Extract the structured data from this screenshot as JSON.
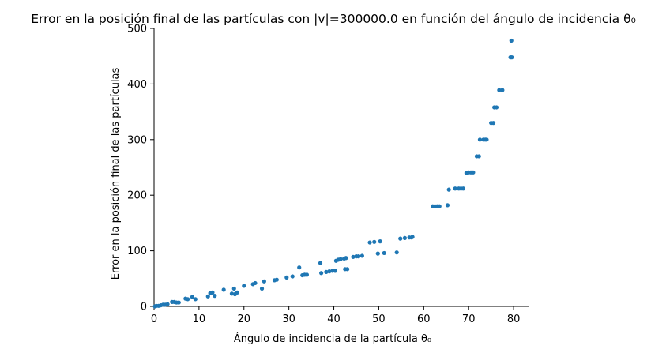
{
  "chart_data": {
    "type": "scatter",
    "title": "Error en la posición final de las partículas con |v|=300000.0 en función del ángulo de incidencia θ₀",
    "xlabel": "Ángulo de incidencia de la partícula θ₀",
    "ylabel": "Error en la posición final de las partículas",
    "xlim": [
      0,
      83.5
    ],
    "ylim": [
      0,
      500
    ],
    "x_ticks": [
      0,
      10,
      20,
      30,
      40,
      50,
      60,
      70,
      80
    ],
    "y_ticks": [
      0,
      100,
      200,
      300,
      400,
      500
    ],
    "x_tick_labels": [
      "0",
      "10",
      "20",
      "30",
      "40",
      "50",
      "60",
      "70",
      "80"
    ],
    "y_tick_labels": [
      "0",
      "100",
      "200",
      "300",
      "400",
      "500"
    ],
    "grid": false,
    "marker_color": "#1f77b4",
    "points": [
      [
        0.2,
        0
      ],
      [
        0.5,
        1
      ],
      [
        1,
        1
      ],
      [
        1.5,
        2
      ],
      [
        2,
        3
      ],
      [
        2.5,
        3
      ],
      [
        3,
        4
      ],
      [
        4,
        8
      ],
      [
        4.5,
        8
      ],
      [
        5,
        7
      ],
      [
        5.5,
        7
      ],
      [
        7,
        14
      ],
      [
        7.5,
        13
      ],
      [
        8.5,
        17
      ],
      [
        9.2,
        13
      ],
      [
        12,
        18
      ],
      [
        12.5,
        24
      ],
      [
        13,
        25
      ],
      [
        13.5,
        19
      ],
      [
        15.5,
        30
      ],
      [
        17.3,
        23
      ],
      [
        17.8,
        32
      ],
      [
        18,
        22
      ],
      [
        18.5,
        25
      ],
      [
        20,
        37
      ],
      [
        22,
        40
      ],
      [
        22.5,
        42
      ],
      [
        24,
        32
      ],
      [
        24.5,
        45
      ],
      [
        26.8,
        47
      ],
      [
        27.3,
        48
      ],
      [
        29.5,
        52
      ],
      [
        30.8,
        54
      ],
      [
        32.3,
        70
      ],
      [
        33,
        56
      ],
      [
        33.5,
        57
      ],
      [
        34,
        57
      ],
      [
        37,
        78
      ],
      [
        37.2,
        60
      ],
      [
        38.3,
        62
      ],
      [
        39,
        63
      ],
      [
        39.7,
        64
      ],
      [
        40.3,
        64
      ],
      [
        40.5,
        82
      ],
      [
        41,
        84
      ],
      [
        41.5,
        85
      ],
      [
        42.3,
        86
      ],
      [
        42.7,
        87
      ],
      [
        42.5,
        67
      ],
      [
        43,
        67
      ],
      [
        44.3,
        89
      ],
      [
        45,
        90
      ],
      [
        45.5,
        90
      ],
      [
        46.3,
        91
      ],
      [
        48,
        115
      ],
      [
        49,
        116
      ],
      [
        49.8,
        95
      ],
      [
        50.3,
        117
      ],
      [
        51.2,
        96
      ],
      [
        54,
        97
      ],
      [
        54.8,
        122
      ],
      [
        55.8,
        123
      ],
      [
        56.8,
        124
      ],
      [
        57.3,
        124
      ],
      [
        57.5,
        125
      ],
      [
        62,
        180
      ],
      [
        62.5,
        180
      ],
      [
        63,
        180
      ],
      [
        63.5,
        180
      ],
      [
        65.3,
        182
      ],
      [
        65.6,
        210
      ],
      [
        67,
        212
      ],
      [
        67.8,
        212
      ],
      [
        68.3,
        212
      ],
      [
        68.8,
        212
      ],
      [
        69.5,
        240
      ],
      [
        70,
        241
      ],
      [
        70.5,
        241
      ],
      [
        71,
        241
      ],
      [
        71.8,
        270
      ],
      [
        72.3,
        270
      ],
      [
        72.5,
        300
      ],
      [
        73.3,
        300
      ],
      [
        73.7,
        300
      ],
      [
        74,
        300
      ],
      [
        75,
        330
      ],
      [
        75.5,
        330
      ],
      [
        75.7,
        358
      ],
      [
        76.2,
        358
      ],
      [
        76.8,
        389
      ],
      [
        77.5,
        389
      ],
      [
        79.3,
        448
      ],
      [
        79.6,
        448
      ],
      [
        79.5,
        478
      ]
    ]
  }
}
